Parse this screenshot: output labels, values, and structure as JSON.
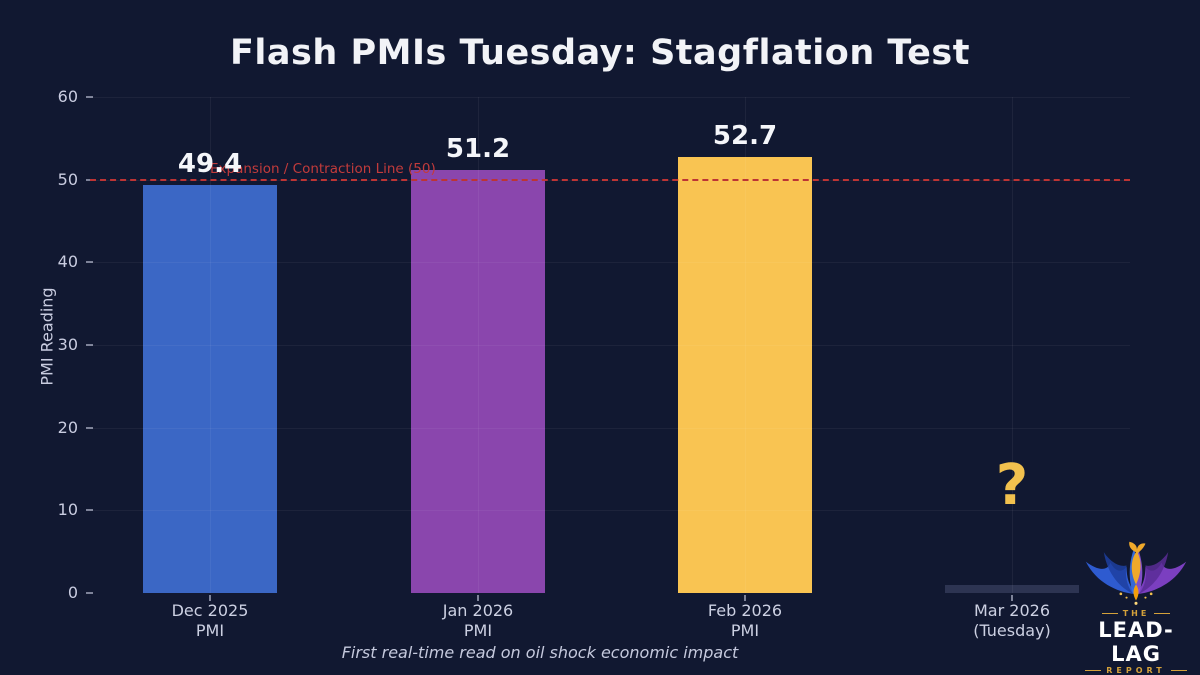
{
  "chart_data": {
    "type": "bar",
    "title": "Flash PMIs Tuesday: Stagflation Test",
    "ylabel": "PMI Reading",
    "xlabel": "",
    "ylim": [
      0,
      60
    ],
    "yticks": [
      0,
      10,
      20,
      30,
      40,
      50,
      60
    ],
    "grid": true,
    "legend": "none",
    "categories": [
      "Dec 2025\nPMI",
      "Jan 2026\nPMI",
      "Feb 2026\nPMI",
      "Mar 2026\n(Tuesday)"
    ],
    "values": [
      49.4,
      51.2,
      52.7,
      null
    ],
    "bars": [
      {
        "label": [
          "Dec 2025",
          "PMI"
        ],
        "value": 49.4,
        "display": "49.4",
        "color": "#3b67c5"
      },
      {
        "label": [
          "Jan 2026",
          "PMI"
        ],
        "value": 51.2,
        "display": "51.2",
        "color": "#8a46ad"
      },
      {
        "label": [
          "Feb 2026",
          "PMI"
        ],
        "value": 52.7,
        "display": "52.7",
        "color": "#f9c452"
      },
      {
        "label": [
          "Mar 2026",
          "(Tuesday)"
        ],
        "value": null,
        "display": "",
        "color": "#2d3452",
        "placeholder": true
      }
    ],
    "reference_line": {
      "value": 50,
      "label": "Expansion / Contraction Line (50)",
      "color": "#c23b3b"
    },
    "unknown_marker": {
      "symbol": "?",
      "color": "#f2c14e"
    },
    "caption": "First real-time read on oil shock economic impact"
  },
  "colors": {
    "background": "#111831",
    "title_text": "#f2f3f7",
    "tick_text": "#c9cce0",
    "gold": "#f2c14e",
    "red_line": "#bd3434"
  },
  "logo": {
    "line1": "THE",
    "line2": "LEAD-LAG",
    "line3": "REPORT"
  }
}
